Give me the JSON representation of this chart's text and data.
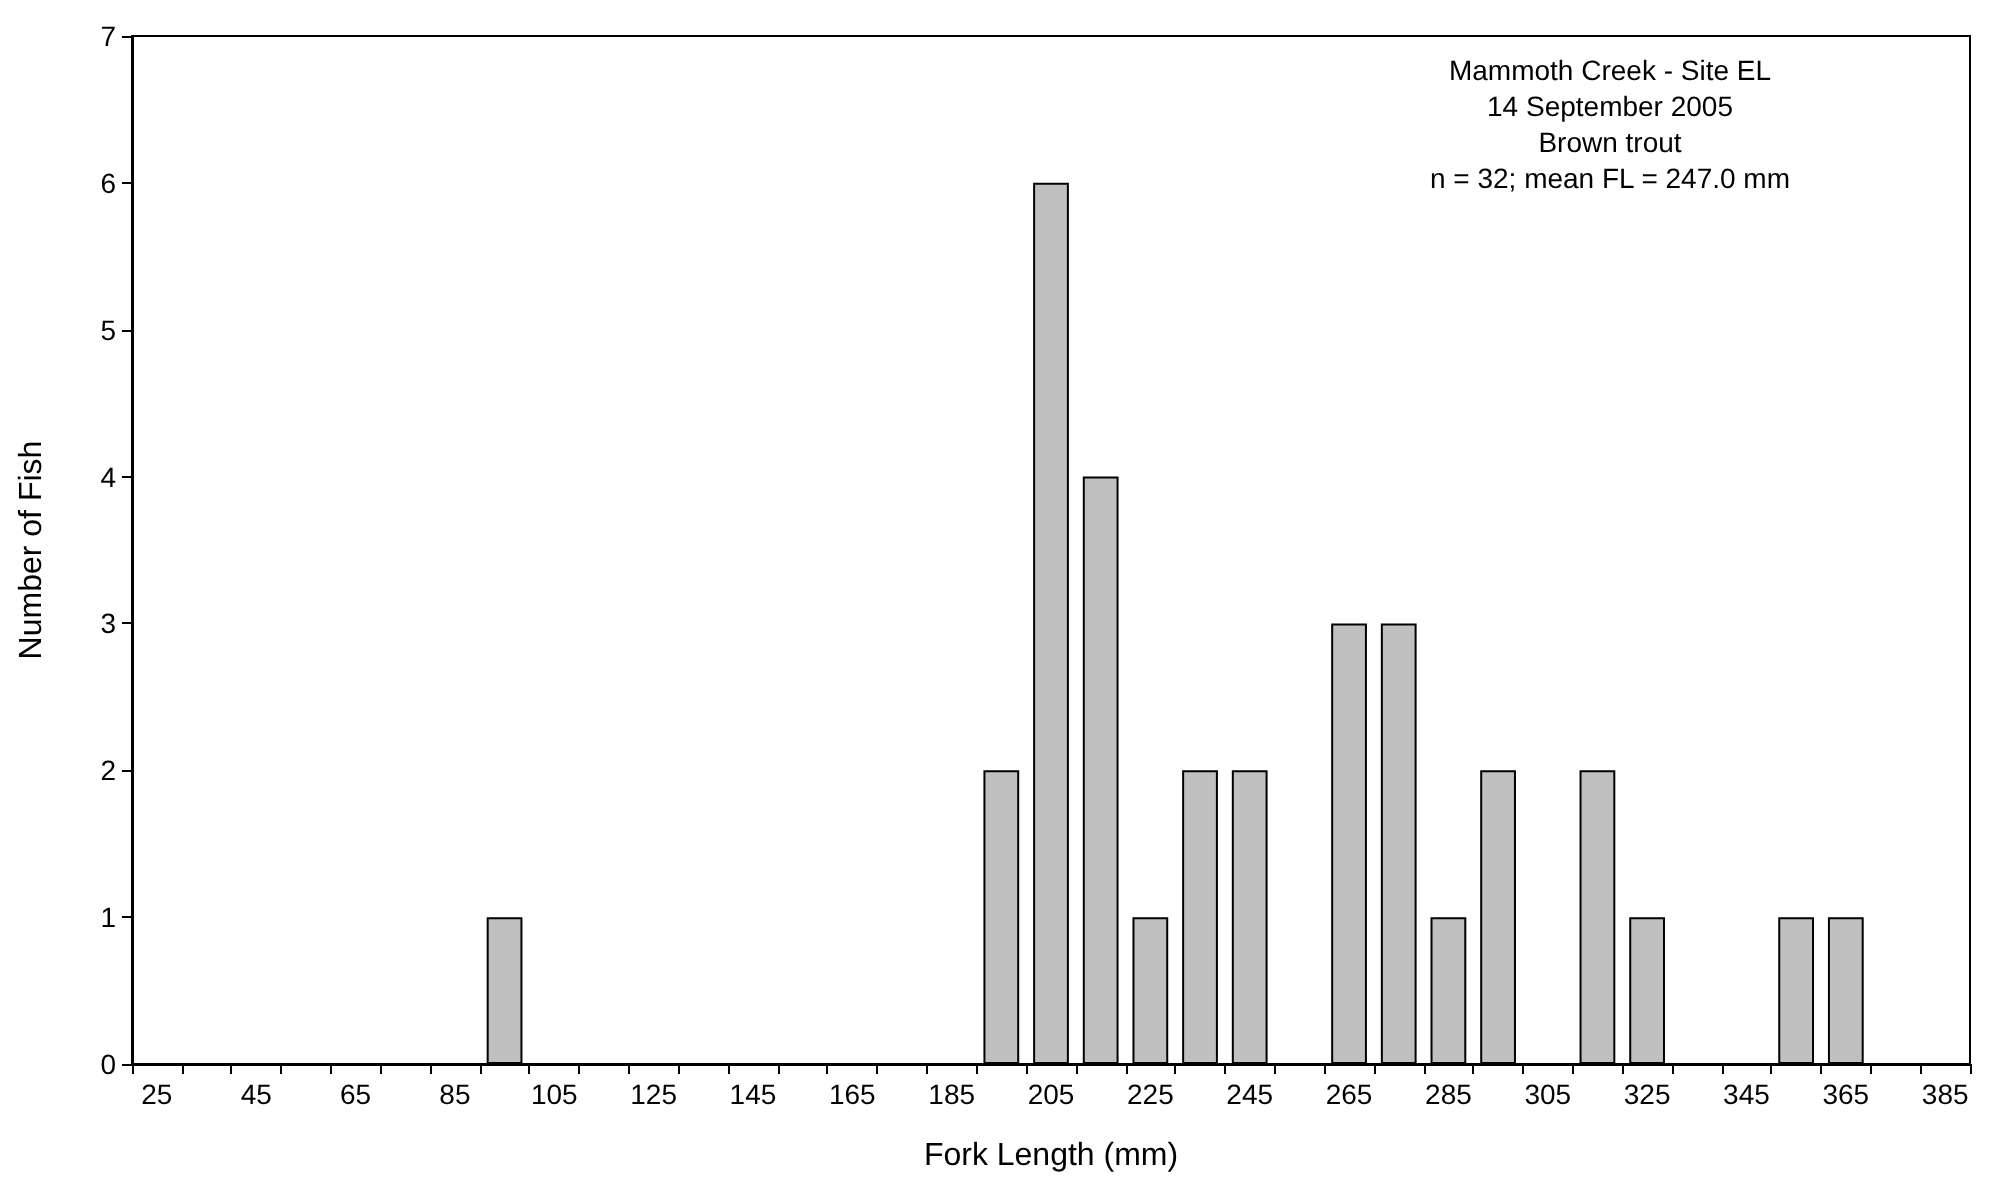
{
  "chart_data": {
    "type": "bar",
    "xlabel": "Fork Length (mm)",
    "ylabel": "Number of Fish",
    "annotations": [
      "Mammoth Creek - Site EL",
      "14 September 2005",
      "Brown trout",
      "n = 32; mean FL = 247.0 mm"
    ],
    "categories": [
      "25",
      null,
      "45",
      null,
      "65",
      null,
      "85",
      null,
      "105",
      null,
      "125",
      null,
      "145",
      null,
      "165",
      null,
      "185",
      null,
      "205",
      null,
      "225",
      null,
      "245",
      null,
      "265",
      null,
      "285",
      null,
      "305",
      null,
      "325",
      null,
      "345",
      null,
      "365",
      null,
      "385"
    ],
    "values": [
      0,
      0,
      0,
      0,
      0,
      0,
      0,
      1,
      0,
      0,
      0,
      0,
      0,
      0,
      0,
      0,
      0,
      2,
      6,
      4,
      1,
      2,
      2,
      0,
      3,
      3,
      1,
      2,
      0,
      2,
      1,
      0,
      0,
      1,
      1,
      0,
      0
    ],
    "color": "#c0c0c0",
    "ylim": [
      0,
      7
    ],
    "yticks": [
      0,
      1,
      2,
      3,
      4,
      5,
      6,
      7
    ],
    "grid": false
  }
}
